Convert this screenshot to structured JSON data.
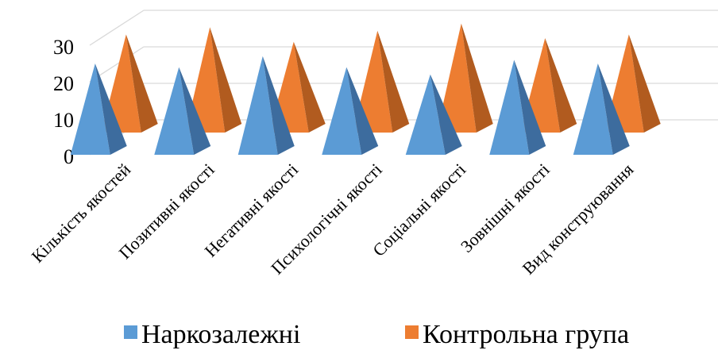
{
  "chart_data": {
    "type": "bar",
    "style": "3d-pyramid",
    "title": "",
    "xlabel": "",
    "ylabel": "",
    "ylim": [
      0,
      30
    ],
    "yticks": [
      0,
      10,
      20,
      30
    ],
    "grid": true,
    "legend_position": "bottom",
    "categories": [
      "Кількість якостей",
      "Позитивні якості",
      "Негативні якості",
      "Психологічні якості",
      "Соціальні якості",
      "Зовнішні якості",
      "Вид конструювання"
    ],
    "series": [
      {
        "name": "Наркозалежні",
        "color": "#5B9BD5",
        "values": [
          25,
          24,
          27,
          24,
          22,
          26,
          25
        ]
      },
      {
        "name": "Контрольна група",
        "color": "#ED7D31",
        "values": [
          26,
          28,
          24,
          27,
          29,
          25,
          26
        ]
      }
    ]
  }
}
